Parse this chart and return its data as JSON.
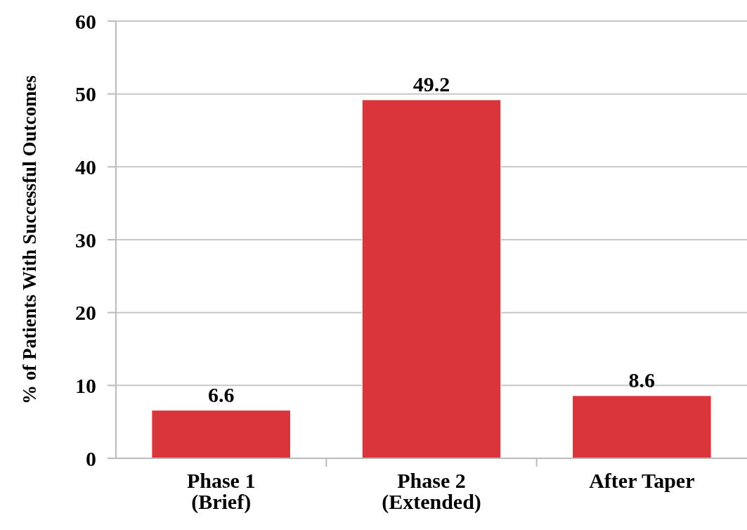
{
  "chart_data": {
    "type": "bar",
    "ylabel": "% of Patients With Successful Outcomes",
    "categories": [
      "Phase 1\n(Brief)",
      "Phase 2\n(Extended)",
      "After Taper"
    ],
    "values": [
      6.6,
      49.2,
      8.6
    ],
    "color": "#d9353a",
    "ylim": [
      0,
      60
    ],
    "yticks": [
      0,
      10,
      20,
      30,
      40,
      50,
      60
    ],
    "grid": "y",
    "data_labels": true
  }
}
